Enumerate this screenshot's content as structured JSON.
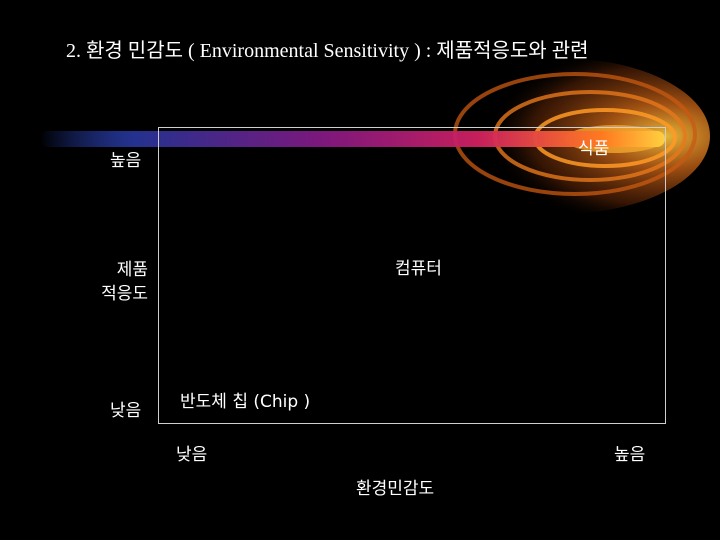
{
  "slide": {
    "title": "2. 환경 민감도 ( Environmental Sensitivity ) : 제품적응도와 관련"
  },
  "axes": {
    "y_high": "높음",
    "y_title_line1": "제품",
    "y_title_line2": "적응도",
    "y_low": "낮음",
    "x_low": "낮음",
    "x_high": "높음",
    "x_title": "환경민감도"
  },
  "points": {
    "food": "식품",
    "computer": "컴퓨터",
    "chip": "반도체 칩 (Chip )"
  },
  "colors": {
    "background": "#000000",
    "text": "#ffffff",
    "box_border": "#cfcfcf",
    "flare_core": "#ffcc33"
  }
}
